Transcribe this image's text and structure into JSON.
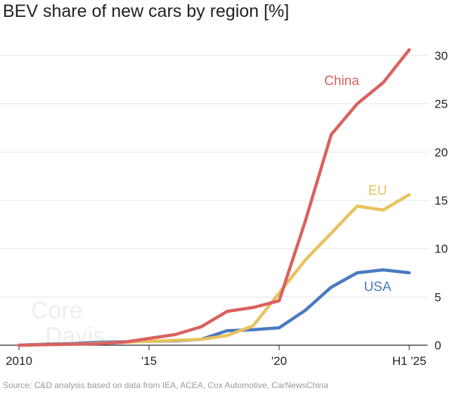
{
  "chart_data": {
    "type": "line",
    "title": "BEV share of new cars by region [%]",
    "source": "Source: C&D analysis based on data from IEA, ACEA, Cox Automotive, CarNewsChina",
    "watermark": [
      "Core",
      "Davis"
    ],
    "x_ticks": [
      {
        "value": 2010,
        "label": "2010"
      },
      {
        "value": 2015,
        "label": "'15"
      },
      {
        "value": 2020,
        "label": "'20"
      },
      {
        "value": 2025,
        "label": "H1 '25"
      }
    ],
    "y_ticks": [
      0,
      5,
      10,
      15,
      20,
      25,
      30
    ],
    "xlim": [
      2010,
      2025
    ],
    "ylim": [
      0,
      30
    ],
    "grid": "horizontal",
    "x": [
      2010,
      2011,
      2012,
      2013,
      2014,
      2015,
      2016,
      2017,
      2018,
      2019,
      2020,
      2021,
      2022,
      2023,
      2024,
      2025
    ],
    "series": [
      {
        "name": "China",
        "color": "#d9625f",
        "values": [
          0,
          0.05,
          0.1,
          0.15,
          0.3,
          0.7,
          1.1,
          1.9,
          3.5,
          3.9,
          4.6,
          12.8,
          21.8,
          25.0,
          27.2,
          30.6
        ]
      },
      {
        "name": "EU",
        "color": "#e8c25d",
        "values": [
          0,
          0.05,
          0.1,
          0.2,
          0.3,
          0.4,
          0.5,
          0.6,
          1.0,
          2.0,
          5.4,
          8.8,
          11.6,
          14.4,
          14.0,
          15.6
        ]
      },
      {
        "name": "USA",
        "color": "#4a7ac0",
        "values": [
          0,
          0.1,
          0.15,
          0.3,
          0.35,
          0.4,
          0.45,
          0.6,
          1.5,
          1.6,
          1.8,
          3.6,
          6.0,
          7.5,
          7.8,
          7.5
        ]
      }
    ]
  }
}
